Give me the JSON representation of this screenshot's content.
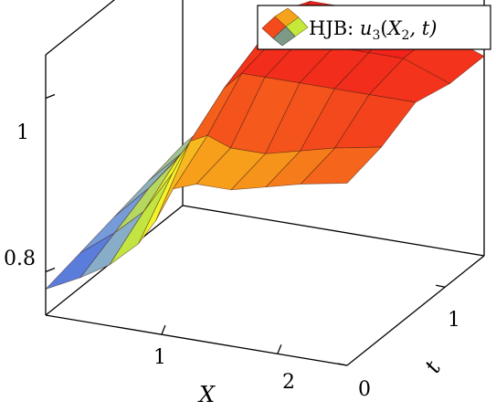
{
  "chart_data": {
    "type": "surface-3d",
    "legend": {
      "prefix": "HJB: ",
      "math": "u",
      "sub1": "3",
      "mid": "(",
      "var": "X",
      "sub2": "2",
      "suffix": ", t)",
      "placement": "top-right"
    },
    "xlabel": "X",
    "ylabel": "t",
    "zlabel": "",
    "x_ticks": [
      1,
      2
    ],
    "y_ticks": [
      0,
      1
    ],
    "z_ticks": [
      0.8,
      1
    ],
    "x_tick_labels": [
      "1",
      "2"
    ],
    "y_tick_labels": [
      "0",
      "1"
    ],
    "z_tick_labels": [
      "0.8",
      "1"
    ],
    "xlim": [
      0,
      2.6
    ],
    "ylim": [
      0,
      1.4
    ],
    "zlim": [
      0.75,
      1.05
    ],
    "grid": false,
    "colormap": [
      "#3b5bdc",
      "#7fa6d9",
      "#c6e83a",
      "#f4f42a",
      "#f7a21b",
      "#f44a1c",
      "#f21a1a"
    ],
    "x": [
      0.0,
      0.3,
      0.55,
      0.8,
      0.95,
      1.1,
      1.3,
      1.6,
      1.9,
      2.2,
      2.6
    ],
    "t": [
      0.0,
      0.35,
      0.7,
      1.05,
      1.4
    ],
    "z": [
      [
        0.78,
        0.8,
        0.82,
        0.85,
        0.88,
        0.92,
        0.93,
        0.93,
        0.94,
        0.95,
        0.96
      ],
      [
        0.79,
        0.82,
        0.85,
        0.9,
        0.94,
        0.95,
        0.94,
        0.94,
        0.95,
        0.96,
        0.97
      ],
      [
        0.8,
        0.84,
        0.88,
        0.93,
        0.97,
        0.99,
        0.99,
        0.99,
        0.99,
        0.99,
        0.99
      ],
      [
        0.81,
        0.85,
        0.9,
        0.95,
        0.99,
        1.0,
        1.0,
        1.0,
        1.0,
        1.0,
        0.98
      ],
      [
        0.82,
        0.86,
        0.91,
        0.96,
        1.0,
        1.01,
        1.01,
        1.01,
        1.01,
        1.0,
        0.98
      ]
    ]
  }
}
